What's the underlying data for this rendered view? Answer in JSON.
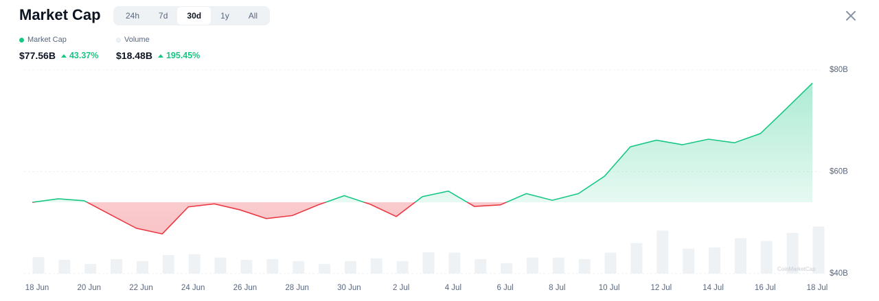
{
  "header": {
    "title": "Market Cap",
    "tabs": [
      "24h",
      "7d",
      "30d",
      "1y",
      "All"
    ],
    "active_tab": 2
  },
  "watermark": "CoinMarketCap",
  "chart_data": {
    "type": "line",
    "categories": [
      "18 Jun",
      null,
      "20 Jun",
      null,
      "22 Jun",
      null,
      "24 Jun",
      null,
      "26 Jun",
      null,
      "28 Jun",
      null,
      "30 Jun",
      null,
      "2 Jul",
      null,
      "4 Jul",
      null,
      "6 Jul",
      null,
      "8 Jul",
      null,
      "10 Jul",
      null,
      "12 Jul",
      null,
      "14 Jul",
      null,
      "16 Jul",
      null,
      "18 Jul"
    ],
    "series": [
      {
        "name": "Market Cap",
        "color": "#16c784",
        "negative_color": "#ea3943",
        "summary": "$77.56B",
        "change": "43.37%",
        "values": [
          54.0,
          54.7,
          54.3,
          51.6,
          48.9,
          47.8,
          53.1,
          53.7,
          52.5,
          50.8,
          51.4,
          53.5,
          55.3,
          53.6,
          51.2,
          55.1,
          56.2,
          53.2,
          53.5,
          55.7,
          54.4,
          55.7,
          59.1,
          64.9,
          66.2,
          65.3,
          66.4,
          65.7,
          67.5,
          72.4,
          77.4
        ]
      },
      {
        "name": "Volume",
        "type": "bar",
        "axis": "y2",
        "color": "#eff2f5",
        "summary": "$18.48B",
        "change": "195.45%",
        "values": [
          6.5,
          5.4,
          3.8,
          5.7,
          4.9,
          7.3,
          7.6,
          6.3,
          5.4,
          5.7,
          4.9,
          3.8,
          4.9,
          6.0,
          4.9,
          8.4,
          8.2,
          5.7,
          4.1,
          6.3,
          6.3,
          5.7,
          8.2,
          12.0,
          16.9,
          9.8,
          10.3,
          13.9,
          12.8,
          16.0,
          18.5
        ]
      }
    ],
    "ylim": [
      40,
      80
    ],
    "yticks": [
      {
        "value": 40,
        "label": "$40B"
      },
      {
        "value": 60,
        "label": "$60B"
      },
      {
        "value": 80,
        "label": "$80B"
      }
    ],
    "y2lim": [
      0,
      80
    ],
    "grid": true
  }
}
